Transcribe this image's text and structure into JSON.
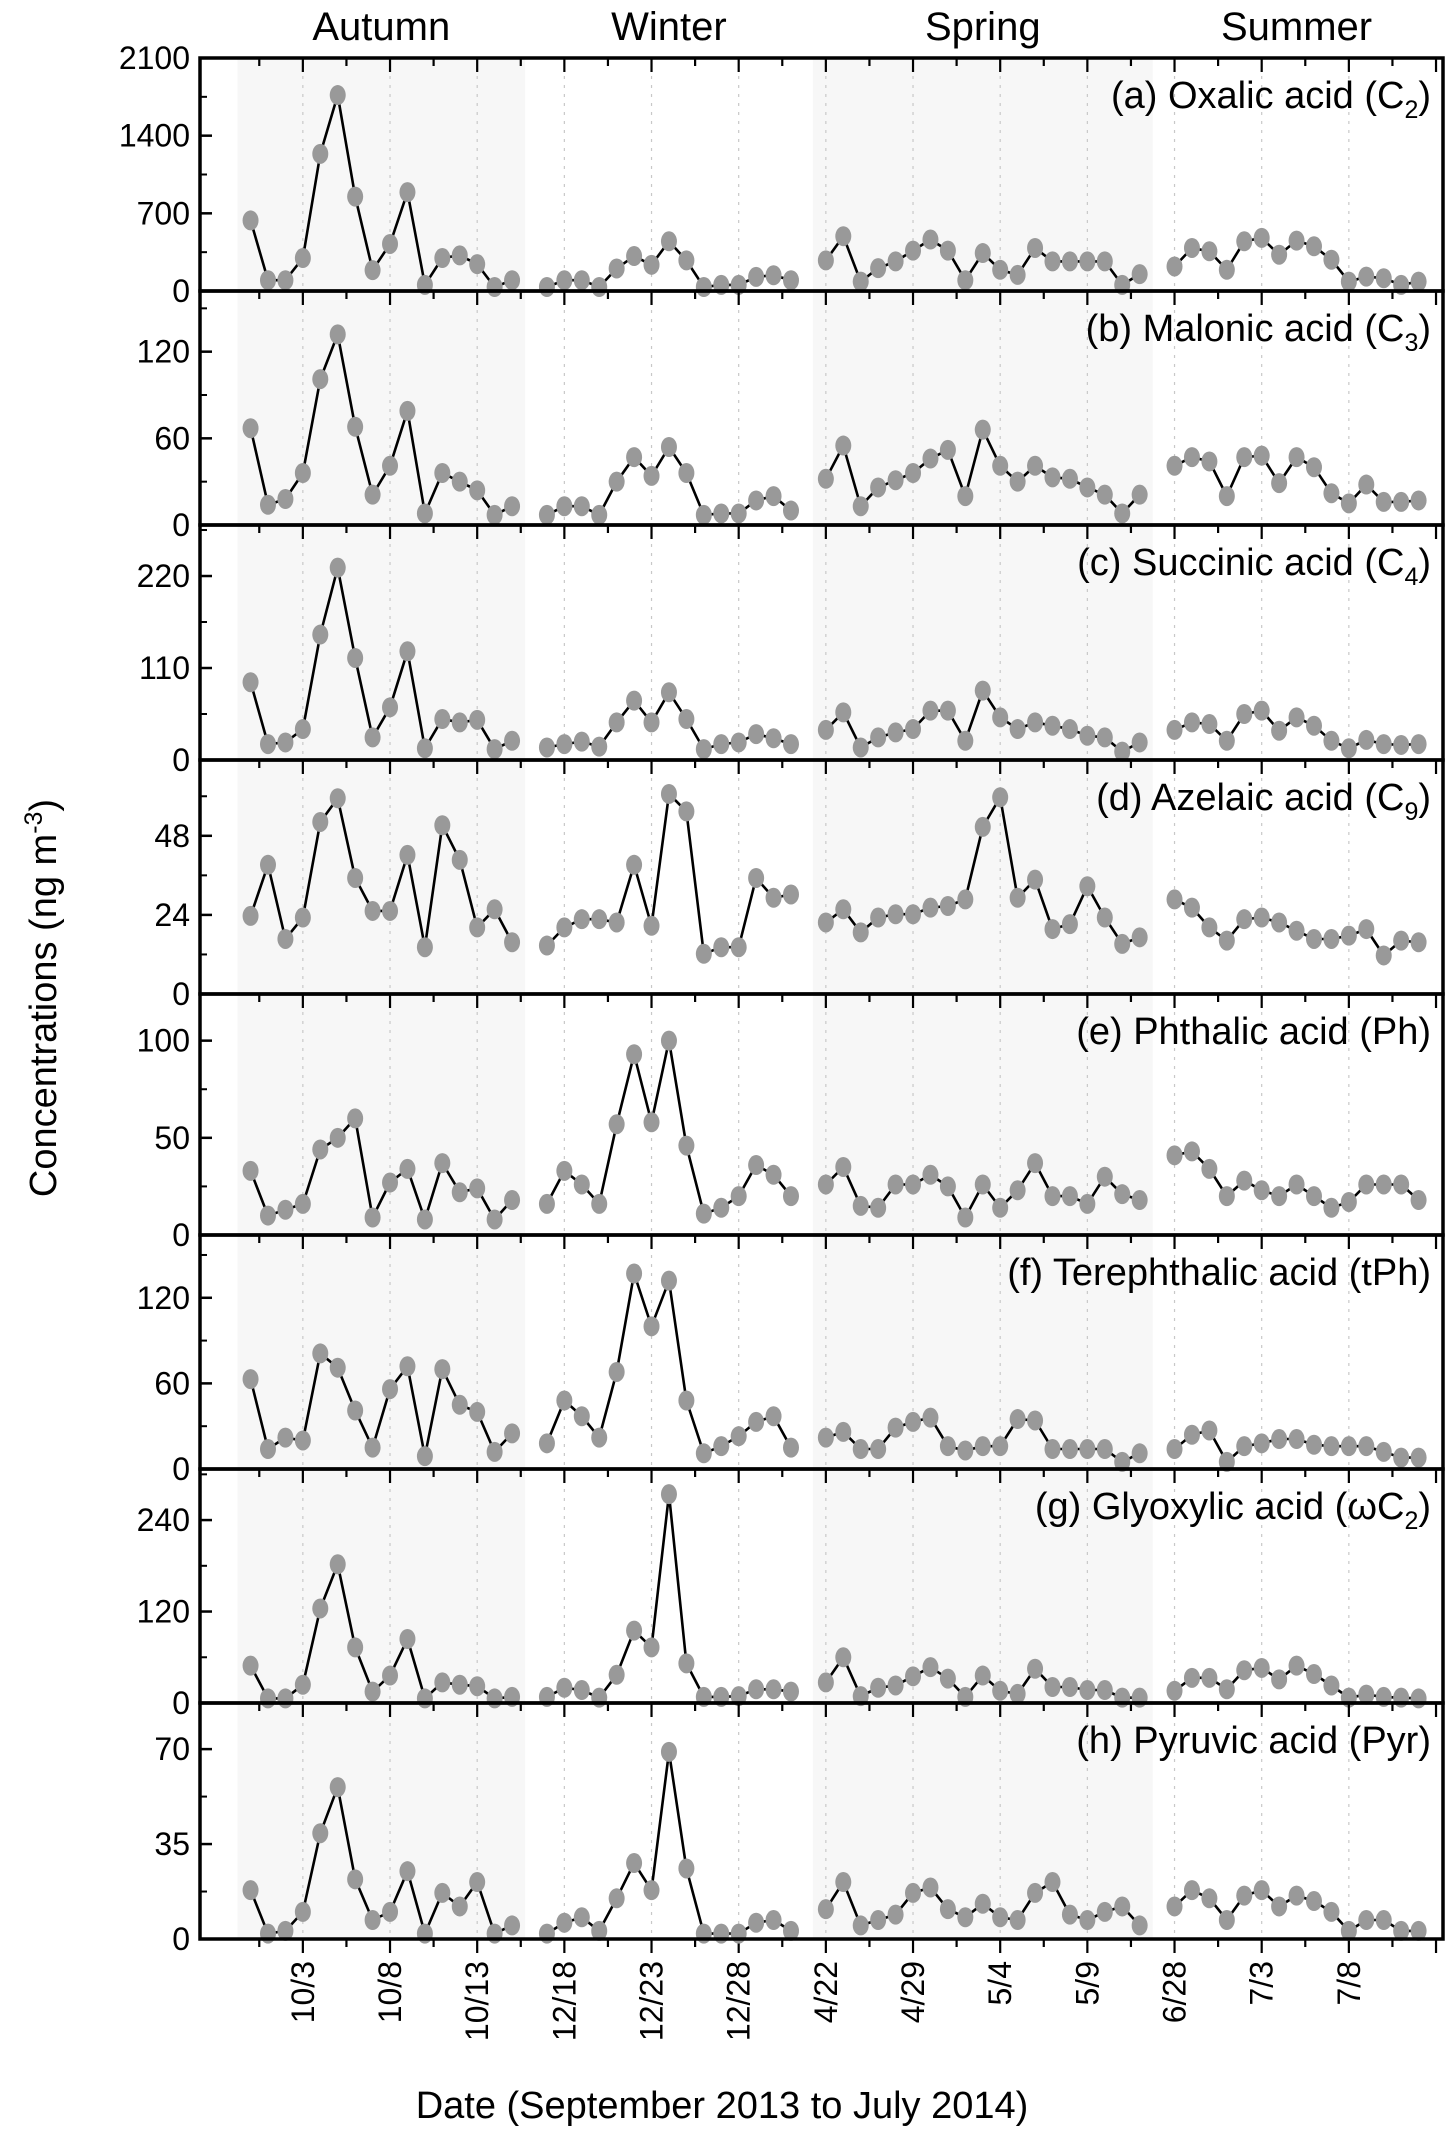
{
  "chart_data": {
    "type": "scatter",
    "x_axis_title": "Date (September 2013 to July 2014)",
    "y_axis_title": "Concentrations (ng m",
    "y_axis_title_sup": "-3",
    "y_axis_title_end": ")",
    "x_unit": "sample index",
    "seasons": [
      {
        "name": "Autumn",
        "start_index": 0,
        "shaded": true
      },
      {
        "name": "Winter",
        "start_index": 17,
        "shaded": false
      },
      {
        "name": "Spring",
        "start_index": 33,
        "shaded": true
      },
      {
        "name": "Summer",
        "start_index": 53,
        "shaded": false
      }
    ],
    "x_range": [
      -2.9,
      68.4
    ],
    "x_ticks": [
      {
        "label": "10/3",
        "index": 3
      },
      {
        "label": "10/8",
        "index": 8
      },
      {
        "label": "10/13",
        "index": 13
      },
      {
        "label": "12/18",
        "index": 18
      },
      {
        "label": "12/23",
        "index": 23
      },
      {
        "label": "12/28",
        "index": 28
      },
      {
        "label": "4/22",
        "index": 33
      },
      {
        "label": "4/29",
        "index": 38
      },
      {
        "label": "5/4",
        "index": 43
      },
      {
        "label": "5/9",
        "index": 48
      },
      {
        "label": "6/28",
        "index": 53
      },
      {
        "label": "7/3",
        "index": 58
      },
      {
        "label": "7/8",
        "index": 63
      }
    ],
    "panels": [
      {
        "title": "(a) Oxalic acid (C",
        "sub": "2",
        "title_end": ")",
        "ylim": [
          0,
          2100
        ],
        "yticks": [
          "0",
          "700",
          "1400",
          "2100"
        ],
        "values": [
          [
            636,
            97,
            97,
            297,
            1236,
            1766,
            851,
            188,
            424,
            891,
            55,
            297,
            321,
            242,
            36,
            97
          ],
          [
            36,
            97,
            97,
            36,
            203,
            315,
            236,
            448,
            276,
            36,
            55,
            55,
            127,
            142,
            97
          ],
          [
            276,
            494,
            85,
            206,
            267,
            364,
            464,
            364,
            97,
            342,
            191,
            145,
            388,
            267,
            267,
            267,
            267,
            55,
            152
          ],
          [
            221,
            388,
            358,
            191,
            448,
            479,
            327,
            454,
            403,
            282,
            85,
            130,
            115,
            55,
            85
          ]
        ]
      },
      {
        "title": "(b) Malonic acid (C",
        "sub": "3",
        "title_end": ")",
        "ylim": [
          0,
          162
        ],
        "yticks": [
          "0",
          "60",
          "120"
        ],
        "values": [
          [
            67,
            14,
            18,
            36,
            101,
            132,
            68,
            21,
            41,
            79,
            8,
            36,
            30,
            24,
            7,
            13
          ],
          [
            7,
            13,
            13,
            7,
            30,
            47,
            34,
            54,
            36,
            7,
            8,
            8,
            17,
            20,
            10
          ],
          [
            32,
            55,
            13,
            26,
            31,
            36,
            46,
            52,
            20,
            66,
            41,
            30,
            41,
            33,
            32,
            26,
            21,
            8,
            21
          ],
          [
            41,
            47,
            44,
            20,
            47,
            48,
            29,
            47,
            40,
            22,
            15,
            28,
            16,
            16,
            17
          ]
        ]
      },
      {
        "title": "(c) Succinic acid (C",
        "sub": "4",
        "title_end": ")",
        "ylim": [
          0,
          281
        ],
        "yticks": [
          "0",
          "110",
          "220"
        ],
        "values": [
          [
            93,
            19,
            21,
            37,
            150,
            230,
            122,
            27,
            63,
            130,
            14,
            49,
            45,
            48,
            13,
            23
          ],
          [
            15,
            19,
            22,
            16,
            45,
            71,
            45,
            81,
            49,
            13,
            19,
            21,
            31,
            26,
            19
          ],
          [
            36,
            57,
            15,
            27,
            33,
            37,
            59,
            59,
            23,
            83,
            51,
            37,
            45,
            41,
            37,
            29,
            27,
            10,
            21
          ],
          [
            36,
            45,
            43,
            23,
            55,
            59,
            35,
            51,
            41,
            23,
            14,
            24,
            19,
            18,
            19
          ]
        ]
      },
      {
        "title": "(d) Azelaic acid (C",
        "sub": "9",
        "title_end": ")",
        "ylim": [
          0,
          71
        ],
        "yticks": [
          "0",
          "24",
          "48"
        ],
        "values": [
          [
            23.7,
            39.2,
            16.7,
            23.2,
            52.2,
            59.4,
            35.2,
            25.2,
            25.2,
            42.2,
            14.2,
            51.2,
            40.7,
            20.2,
            25.7,
            15.7
          ],
          [
            14.7,
            20.2,
            22.7,
            22.7,
            21.7,
            39.2,
            20.7,
            60.7,
            55.4,
            12.2,
            14.2,
            14.2,
            35.2,
            29.2,
            30.2
          ],
          [
            21.7,
            25.7,
            18.7,
            23.2,
            24.2,
            24.2,
            26.2,
            26.7,
            28.7,
            50.7,
            59.7,
            29.2,
            34.7,
            19.7,
            21.2,
            32.7,
            23.2,
            15.2,
            17.2
          ],
          [
            28.7,
            26.2,
            20.2,
            16.2,
            22.7,
            23.2,
            21.7,
            19.2,
            16.7,
            16.7,
            17.7,
            19.7,
            11.7,
            16.2,
            15.7
          ]
        ]
      },
      {
        "title": "(e) Phthalic acid (Ph)",
        "sub": "",
        "title_end": "",
        "ylim": [
          0,
          124
        ],
        "yticks": [
          "0",
          "50",
          "100"
        ],
        "values": [
          [
            33,
            10,
            13,
            16,
            44,
            50,
            60,
            9,
            27,
            34,
            8,
            37,
            22,
            24,
            8,
            18
          ],
          [
            16,
            33,
            26,
            16,
            57,
            93,
            58,
            100,
            46,
            11,
            14,
            20,
            36,
            31,
            20
          ],
          [
            26,
            35,
            15,
            14,
            26,
            26,
            31,
            25,
            9,
            26,
            14,
            23,
            37,
            20,
            20,
            16,
            30,
            21,
            18
          ],
          [
            41,
            43,
            34,
            20,
            28,
            23,
            20,
            26,
            20,
            14,
            17,
            26,
            26,
            26,
            18
          ]
        ]
      },
      {
        "title": "(f) Terephthalic acid (tPh)",
        "sub": "",
        "title_end": "",
        "ylim": [
          0,
          164
        ],
        "yticks": [
          "0",
          "60",
          "120"
        ],
        "values": [
          [
            63,
            14,
            22,
            20,
            81,
            71,
            41,
            15,
            56,
            72,
            9,
            70,
            45,
            40,
            12,
            25
          ],
          [
            18,
            48,
            37,
            22,
            68,
            137,
            100,
            132,
            48,
            11,
            16,
            23,
            33,
            37,
            15
          ],
          [
            22,
            26,
            14,
            14,
            29,
            33,
            36,
            16,
            13,
            16,
            16,
            35,
            34,
            14,
            14,
            14,
            14,
            5,
            11
          ],
          [
            14,
            24,
            27,
            5,
            16,
            18,
            21,
            21,
            17,
            16,
            16,
            16,
            12,
            8,
            8
          ]
        ]
      },
      {
        "title": "(g) Glyoxylic acid (ωC",
        "sub": "2",
        "title_end": ")",
        "ylim": [
          0,
          307
        ],
        "yticks": [
          "0",
          "120",
          "240"
        ],
        "values": [
          [
            49,
            6,
            6,
            24,
            124,
            182,
            73,
            15,
            36,
            84,
            6,
            27,
            24,
            22,
            6,
            8
          ],
          [
            8,
            20,
            17,
            7,
            37,
            95,
            73,
            274,
            52,
            8,
            8,
            9,
            18,
            18,
            15
          ],
          [
            27,
            60,
            9,
            20,
            23,
            35,
            47,
            32,
            8,
            36,
            16,
            12,
            45,
            21,
            21,
            17,
            17,
            7,
            7
          ],
          [
            16,
            33,
            33,
            18,
            43,
            46,
            31,
            49,
            38,
            23,
            7,
            11,
            8,
            7,
            6
          ]
        ]
      },
      {
        "title": "(h) Pyruvic acid (Pyr)",
        "sub": "",
        "title_end": "",
        "ylim": [
          0,
          87
        ],
        "yticks": [
          "0",
          "35",
          "70"
        ],
        "values": [
          [
            18,
            2,
            3,
            10,
            39,
            56,
            22,
            7,
            10,
            25,
            2,
            17,
            12,
            21,
            2,
            5
          ],
          [
            2,
            6,
            8,
            3,
            15,
            28,
            18,
            69,
            26,
            2,
            2,
            2,
            6,
            7,
            3
          ],
          [
            11,
            21,
            5,
            7,
            9,
            17,
            19,
            11,
            8,
            13,
            8,
            7,
            17,
            21,
            9,
            7,
            10,
            12,
            5
          ],
          [
            12,
            18,
            15,
            7,
            16,
            18,
            12,
            16,
            14,
            10,
            3,
            7,
            7,
            3,
            3
          ]
        ]
      }
    ],
    "colors": {
      "marker": "#999999",
      "line": "#000000",
      "shade": "#f7f7f7",
      "grid": "#c8c8c8"
    }
  }
}
